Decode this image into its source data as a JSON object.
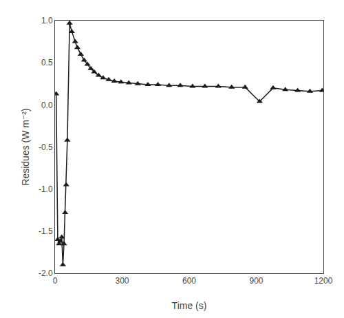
{
  "chart_data": {
    "type": "line",
    "x": [
      5,
      12,
      18,
      24,
      30,
      35,
      40,
      45,
      50,
      55,
      65,
      75,
      90,
      100,
      115,
      130,
      145,
      160,
      175,
      195,
      215,
      240,
      265,
      295,
      330,
      370,
      415,
      460,
      510,
      560,
      615,
      670,
      730,
      790,
      850,
      915,
      975,
      1030,
      1085,
      1140,
      1195
    ],
    "values": [
      0.13,
      -1.6,
      -1.65,
      -1.62,
      -1.57,
      -1.9,
      -1.65,
      -1.28,
      -0.95,
      -0.42,
      0.97,
      0.87,
      0.75,
      0.68,
      0.6,
      0.53,
      0.48,
      0.43,
      0.39,
      0.35,
      0.32,
      0.3,
      0.28,
      0.27,
      0.26,
      0.25,
      0.24,
      0.24,
      0.23,
      0.23,
      0.22,
      0.22,
      0.22,
      0.21,
      0.21,
      0.04,
      0.2,
      0.18,
      0.17,
      0.16,
      0.17
    ],
    "x_label": "Time (s)",
    "y_label": "Residues (W m⁻²)",
    "xlim": [
      0,
      1200
    ],
    "ylim": [
      -2.0,
      1.0
    ],
    "xticks": [
      0,
      300,
      600,
      900,
      1200
    ],
    "yticks": [
      {
        "value": -2.0,
        "label": "-2.0"
      },
      -1.5,
      {
        "value": -1.0,
        "label": "-1.0"
      },
      -0.5,
      {
        "value": 0.0,
        "label": "0.0"
      },
      0.5,
      {
        "value": 1.0,
        "label": "1.0"
      }
    ],
    "color": "#1a1a1a",
    "marker": "triangle-up",
    "line_style": "solid",
    "grid": false
  }
}
